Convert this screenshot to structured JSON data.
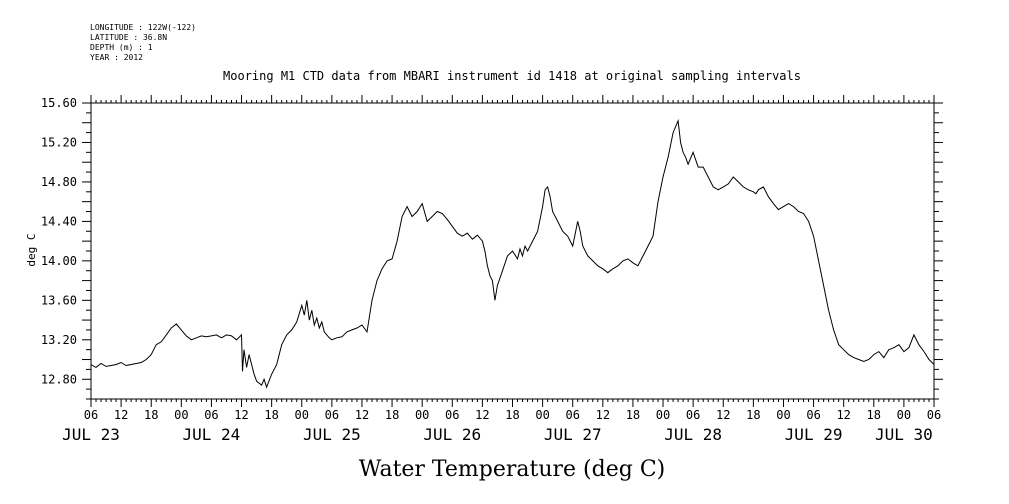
{
  "meta": {
    "longitude": "LONGITUDE : 122W(-122)",
    "latitude": "LATITUDE : 36.8N",
    "depth": "DEPTH (m) : 1",
    "year": "YEAR : 2012"
  },
  "chart_data": {
    "type": "line",
    "title": "Mooring M1 CTD data from MBARI instrument id 1418 at original sampling intervals",
    "xlabel": "Water Temperature (deg C)",
    "ylabel": "deg C",
    "ylim": [
      12.6,
      15.6
    ],
    "yticks": [
      "12.80",
      "13.20",
      "13.60",
      "14.00",
      "14.40",
      "14.80",
      "15.20",
      "15.60"
    ],
    "xlim_hours": [
      6,
      174
    ],
    "hour_labels": [
      "06",
      "12",
      "18",
      "00",
      "06",
      "12",
      "18",
      "00",
      "06",
      "12",
      "18",
      "00",
      "06",
      "12",
      "18",
      "00",
      "06",
      "12",
      "18",
      "00",
      "06",
      "12",
      "18",
      "00",
      "06",
      "12",
      "18",
      "00",
      "06"
    ],
    "date_labels": [
      "JUL 23",
      "JUL 24",
      "JUL 25",
      "JUL 26",
      "JUL 27",
      "JUL 28",
      "JUL 29",
      "JUL 30"
    ],
    "grid": false,
    "series": [
      {
        "x": [
          6,
          7,
          8,
          9,
          10,
          11,
          12,
          13,
          14,
          15,
          16,
          17,
          18,
          19,
          20,
          21,
          22,
          23,
          24,
          25,
          26,
          27,
          28,
          29,
          30,
          31,
          32,
          33,
          34,
          35,
          36,
          36.2,
          36.5,
          37,
          37.5,
          38,
          38.5,
          39,
          40,
          40.5,
          41,
          42,
          43,
          44,
          45,
          46,
          47,
          48,
          48.5,
          49,
          49.5,
          50,
          50.5,
          51,
          51.5,
          52,
          52.5,
          53,
          53.5,
          54,
          55,
          56,
          57,
          58,
          59,
          60,
          61,
          62,
          63,
          64,
          65,
          66,
          67,
          68,
          69,
          70,
          71,
          72,
          73,
          74,
          75,
          76,
          77,
          78,
          79,
          80,
          81,
          82,
          83,
          84,
          84.5,
          85,
          85.5,
          86,
          86.5,
          87,
          88,
          89,
          90,
          91,
          91.5,
          92,
          92.5,
          93,
          94,
          95,
          96,
          96.5,
          97,
          97.5,
          98,
          99,
          100,
          101,
          102,
          103,
          103.5,
          104,
          105,
          106,
          107,
          108,
          108.5,
          109,
          109.5,
          110,
          111,
          112,
          113,
          114,
          115,
          116,
          117,
          118,
          119,
          120,
          121,
          122,
          123,
          123.5,
          124,
          124.5,
          125,
          126,
          127,
          128,
          128.5,
          129,
          129.5,
          130,
          131,
          132,
          133,
          134,
          135,
          136,
          137,
          138,
          138.5,
          139,
          140,
          141,
          142,
          143,
          144,
          145,
          146,
          147,
          148,
          149,
          150,
          151,
          152,
          153,
          154,
          155,
          156,
          157,
          158,
          159,
          160,
          161,
          162,
          163,
          164,
          165,
          166,
          167,
          168,
          169,
          170,
          171,
          172,
          173,
          174
        ],
        "y": [
          12.95,
          12.92,
          12.96,
          12.93,
          12.94,
          12.95,
          12.97,
          12.94,
          12.95,
          12.96,
          12.97,
          13.0,
          13.05,
          13.15,
          13.18,
          13.25,
          13.32,
          13.36,
          13.3,
          13.24,
          13.2,
          13.22,
          13.24,
          13.23,
          13.24,
          13.25,
          13.22,
          13.25,
          13.24,
          13.2,
          13.25,
          12.88,
          13.1,
          12.92,
          13.05,
          12.95,
          12.85,
          12.78,
          12.74,
          12.8,
          12.72,
          12.85,
          12.95,
          13.15,
          13.25,
          13.3,
          13.38,
          13.55,
          13.45,
          13.6,
          13.4,
          13.5,
          13.35,
          13.42,
          13.32,
          13.38,
          13.28,
          13.25,
          13.22,
          13.2,
          13.22,
          13.23,
          13.28,
          13.3,
          13.32,
          13.35,
          13.28,
          13.6,
          13.8,
          13.92,
          14.0,
          14.02,
          14.2,
          14.45,
          14.55,
          14.45,
          14.5,
          14.58,
          14.4,
          14.45,
          14.5,
          14.48,
          14.42,
          14.35,
          14.28,
          14.25,
          14.28,
          14.22,
          14.26,
          14.2,
          14.1,
          13.95,
          13.85,
          13.8,
          13.6,
          13.75,
          13.9,
          14.05,
          14.1,
          14.02,
          14.12,
          14.05,
          14.15,
          14.1,
          14.2,
          14.3,
          14.55,
          14.72,
          14.75,
          14.65,
          14.5,
          14.4,
          14.3,
          14.25,
          14.15,
          14.4,
          14.3,
          14.15,
          14.05,
          14.0,
          13.95,
          13.92,
          13.9,
          13.88,
          13.9,
          13.92,
          13.95,
          14.0,
          14.02,
          13.98,
          13.95,
          14.05,
          14.15,
          14.25,
          14.6,
          14.85,
          15.05,
          15.3,
          15.42,
          15.2,
          15.1,
          15.05,
          14.98,
          15.1,
          14.95,
          14.95,
          14.9,
          14.85,
          14.8,
          14.75,
          14.72,
          14.75,
          14.78,
          14.85,
          14.8,
          14.75,
          14.72,
          14.7,
          14.68,
          14.72,
          14.75,
          14.65,
          14.58,
          14.52,
          14.55,
          14.58,
          14.55,
          14.5,
          14.48,
          14.4,
          14.25,
          14.0,
          13.75,
          13.5,
          13.3,
          13.15,
          13.1,
          13.05,
          13.02,
          13.0,
          12.98,
          13.0,
          13.05,
          13.08,
          13.02,
          13.1,
          13.12,
          13.15,
          13.08,
          13.12,
          13.25,
          13.15,
          13.08,
          13.0,
          12.95
        ]
      }
    ]
  }
}
